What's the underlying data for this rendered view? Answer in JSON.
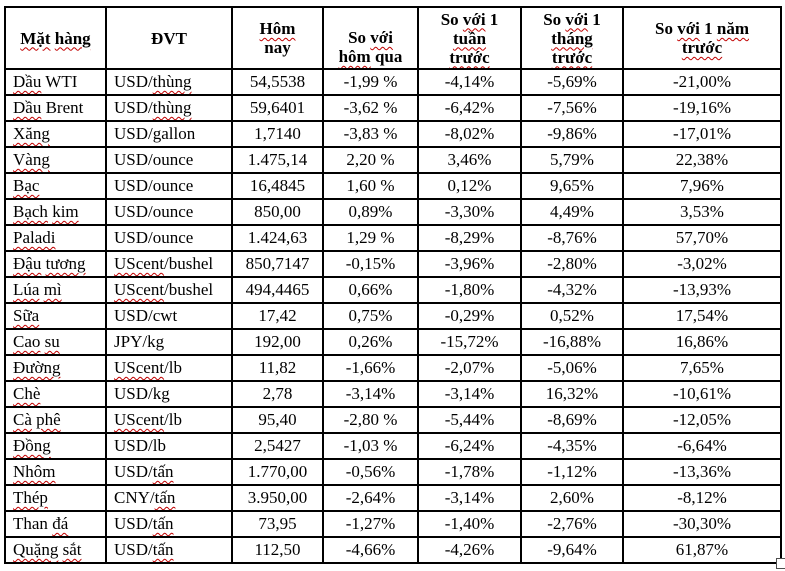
{
  "colors": {
    "background": "#ffffff",
    "border": "#000000",
    "text": "#000000",
    "squiggle": "#c00000"
  },
  "table": {
    "headers": [
      {
        "id": "commodity",
        "label": "Mặt hàng",
        "lines": [
          [
            [
              "Mặt",
              true
            ],
            [
              " ",
              false
            ],
            [
              "hàng",
              true
            ]
          ]
        ]
      },
      {
        "id": "unit",
        "label": "ĐVT",
        "lines": [
          [
            [
              "ĐVT",
              false
            ]
          ]
        ]
      },
      {
        "id": "today",
        "label": "Hôm nay",
        "lines": [
          [
            [
              "Hôm",
              true
            ]
          ],
          [
            [
              "nay",
              false
            ]
          ]
        ]
      },
      {
        "id": "vs_yesterday",
        "label": "So với hôm qua",
        "lines": [
          [
            [
              "So ",
              false
            ],
            [
              "với",
              true
            ]
          ],
          [
            [
              "hôm",
              true
            ],
            [
              " qua",
              false
            ]
          ]
        ]
      },
      {
        "id": "vs_1_week",
        "label": "So với 1 tuần trước",
        "lines": [
          [
            [
              "So ",
              false
            ],
            [
              "với",
              true
            ],
            [
              " 1",
              false
            ]
          ],
          [
            [
              "tuần",
              true
            ]
          ],
          [
            [
              "trước",
              true
            ]
          ]
        ]
      },
      {
        "id": "vs_1_month",
        "label": "So với 1 tháng trước",
        "lines": [
          [
            [
              "So ",
              false
            ],
            [
              "với",
              true
            ],
            [
              " 1",
              false
            ]
          ],
          [
            [
              "tháng",
              true
            ]
          ],
          [
            [
              "trước",
              true
            ]
          ]
        ]
      },
      {
        "id": "vs_1_year",
        "label": "So với 1 năm trước",
        "lines": [
          [
            [
              "So ",
              false
            ],
            [
              "với",
              true
            ],
            [
              " 1 ",
              false
            ],
            [
              "năm",
              true
            ]
          ],
          [
            [
              "trước",
              true
            ]
          ]
        ]
      }
    ],
    "rows": [
      {
        "name": [
          [
            "Dầu",
            true
          ],
          [
            " WTI",
            false
          ]
        ],
        "unit": [
          [
            "USD/",
            false
          ],
          [
            "thùng",
            true
          ]
        ],
        "today": "54,5538",
        "vs_yesterday": "-1,99 %",
        "vs_1_week": "-4,14%",
        "vs_1_month": "-5,69%",
        "vs_1_year": "-21,00%"
      },
      {
        "name": [
          [
            "Dầu",
            true
          ],
          [
            " Brent",
            false
          ]
        ],
        "unit": [
          [
            "USD/",
            false
          ],
          [
            "thùng",
            true
          ]
        ],
        "today": "59,6401",
        "vs_yesterday": "-3,62 %",
        "vs_1_week": "-6,42%",
        "vs_1_month": "-7,56%",
        "vs_1_year": "-19,16%"
      },
      {
        "name": [
          [
            "Xăng",
            true
          ]
        ],
        "unit": [
          [
            "USD/gallon",
            false
          ]
        ],
        "today": "1,7140",
        "vs_yesterday": "-3,83 %",
        "vs_1_week": "-8,02%",
        "vs_1_month": "-9,86%",
        "vs_1_year": "-17,01%"
      },
      {
        "name": [
          [
            "Vàng",
            true
          ]
        ],
        "unit": [
          [
            "USD/ounce",
            false
          ]
        ],
        "today": "1.475,14",
        "vs_yesterday": "2,20 %",
        "vs_1_week": "3,46%",
        "vs_1_month": "5,79%",
        "vs_1_year": "22,38%"
      },
      {
        "name": [
          [
            "Bạc",
            true
          ]
        ],
        "unit": [
          [
            "USD/ounce",
            false
          ]
        ],
        "today": "16,4845",
        "vs_yesterday": "1,60 %",
        "vs_1_week": "0,12%",
        "vs_1_month": "9,65%",
        "vs_1_year": "7,96%"
      },
      {
        "name": [
          [
            "Bạch",
            true
          ],
          [
            " ",
            false
          ],
          [
            "kim",
            true
          ]
        ],
        "unit": [
          [
            "USD/ounce",
            false
          ]
        ],
        "today": "850,00",
        "vs_yesterday": "0,89%",
        "vs_1_week": "-3,30%",
        "vs_1_month": "4,49%",
        "vs_1_year": "3,53%"
      },
      {
        "name": [
          [
            "Paladi",
            true
          ]
        ],
        "unit": [
          [
            "USD/ounce",
            false
          ]
        ],
        "today": "1.424,63",
        "vs_yesterday": "1,29 %",
        "vs_1_week": "-8,29%",
        "vs_1_month": "-8,76%",
        "vs_1_year": "57,70%"
      },
      {
        "name": [
          [
            "Đậu",
            true
          ],
          [
            " ",
            false
          ],
          [
            "tương",
            true
          ]
        ],
        "unit": [
          [
            "UScent",
            true
          ],
          [
            "/bushel",
            false
          ]
        ],
        "today": "850,7147",
        "vs_yesterday": "-0,15%",
        "vs_1_week": "-3,96%",
        "vs_1_month": "-2,80%",
        "vs_1_year": "-3,02%"
      },
      {
        "name": [
          [
            "Lúa",
            true
          ],
          [
            " ",
            false
          ],
          [
            "mì",
            true
          ]
        ],
        "unit": [
          [
            "UScent",
            true
          ],
          [
            "/bushel",
            false
          ]
        ],
        "today": "494,4465",
        "vs_yesterday": "0,66%",
        "vs_1_week": "-1,80%",
        "vs_1_month": "-4,32%",
        "vs_1_year": "-13,93%"
      },
      {
        "name": [
          [
            "Sữa",
            true
          ]
        ],
        "unit": [
          [
            "USD/cwt",
            false
          ]
        ],
        "today": "17,42",
        "vs_yesterday": "0,75%",
        "vs_1_week": "-0,29%",
        "vs_1_month": "0,52%",
        "vs_1_year": "17,54%"
      },
      {
        "name": [
          [
            "Cao",
            true
          ],
          [
            " ",
            false
          ],
          [
            "su",
            true
          ]
        ],
        "unit": [
          [
            "JPY/kg",
            false
          ]
        ],
        "today": "192,00",
        "vs_yesterday": "0,26%",
        "vs_1_week": "-15,72%",
        "vs_1_month": "-16,88%",
        "vs_1_year": "16,86%"
      },
      {
        "name": [
          [
            "Đường",
            true
          ]
        ],
        "unit": [
          [
            "UScent",
            true
          ],
          [
            "/lb",
            false
          ]
        ],
        "today": "11,82",
        "vs_yesterday": "-1,66%",
        "vs_1_week": "-2,07%",
        "vs_1_month": "-5,06%",
        "vs_1_year": "7,65%"
      },
      {
        "name": [
          [
            "Chè",
            true
          ]
        ],
        "unit": [
          [
            "USD/kg",
            false
          ]
        ],
        "today": "2,78",
        "vs_yesterday": "-3,14%",
        "vs_1_week": "-3,14%",
        "vs_1_month": "16,32%",
        "vs_1_year": "-10,61%"
      },
      {
        "name": [
          [
            "Cà",
            true
          ],
          [
            " ",
            false
          ],
          [
            "phê",
            true
          ]
        ],
        "unit": [
          [
            "UScent",
            true
          ],
          [
            "/lb",
            false
          ]
        ],
        "today": "95,40",
        "vs_yesterday": "-2,80 %",
        "vs_1_week": "-5,44%",
        "vs_1_month": "-8,69%",
        "vs_1_year": "-12,05%"
      },
      {
        "name": [
          [
            "Đồng",
            true
          ]
        ],
        "unit": [
          [
            "USD/lb",
            false
          ]
        ],
        "today": "2,5427",
        "vs_yesterday": "-1,03 %",
        "vs_1_week": "-6,24%",
        "vs_1_month": "-4,35%",
        "vs_1_year": "-6,64%"
      },
      {
        "name": [
          [
            "Nhôm",
            true
          ]
        ],
        "unit": [
          [
            "USD/",
            false
          ],
          [
            "tấn",
            true
          ]
        ],
        "today": "1.770,00",
        "vs_yesterday": "-0,56%",
        "vs_1_week": "-1,78%",
        "vs_1_month": "-1,12%",
        "vs_1_year": "-13,36%"
      },
      {
        "name": [
          [
            "Thép",
            true
          ]
        ],
        "unit": [
          [
            "CNY/",
            false
          ],
          [
            "tấn",
            true
          ]
        ],
        "today": "3.950,00",
        "vs_yesterday": "-2,64%",
        "vs_1_week": "-3,14%",
        "vs_1_month": "2,60%",
        "vs_1_year": "-8,12%"
      },
      {
        "name": [
          [
            "Than ",
            false
          ],
          [
            "đá",
            true
          ]
        ],
        "unit": [
          [
            "USD/",
            false
          ],
          [
            "tấn",
            true
          ]
        ],
        "today": "73,95",
        "vs_yesterday": "-1,27%",
        "vs_1_week": "-1,40%",
        "vs_1_month": "-2,76%",
        "vs_1_year": "-30,30%"
      },
      {
        "name": [
          [
            "Quặng",
            true
          ],
          [
            " ",
            false
          ],
          [
            "sắt",
            true
          ]
        ],
        "unit": [
          [
            "USD/",
            false
          ],
          [
            "tấn",
            true
          ]
        ],
        "today": "112,50",
        "vs_yesterday": "-4,66%",
        "vs_1_week": "-4,26%",
        "vs_1_month": "-9,64%",
        "vs_1_year": "61,87%"
      }
    ]
  }
}
